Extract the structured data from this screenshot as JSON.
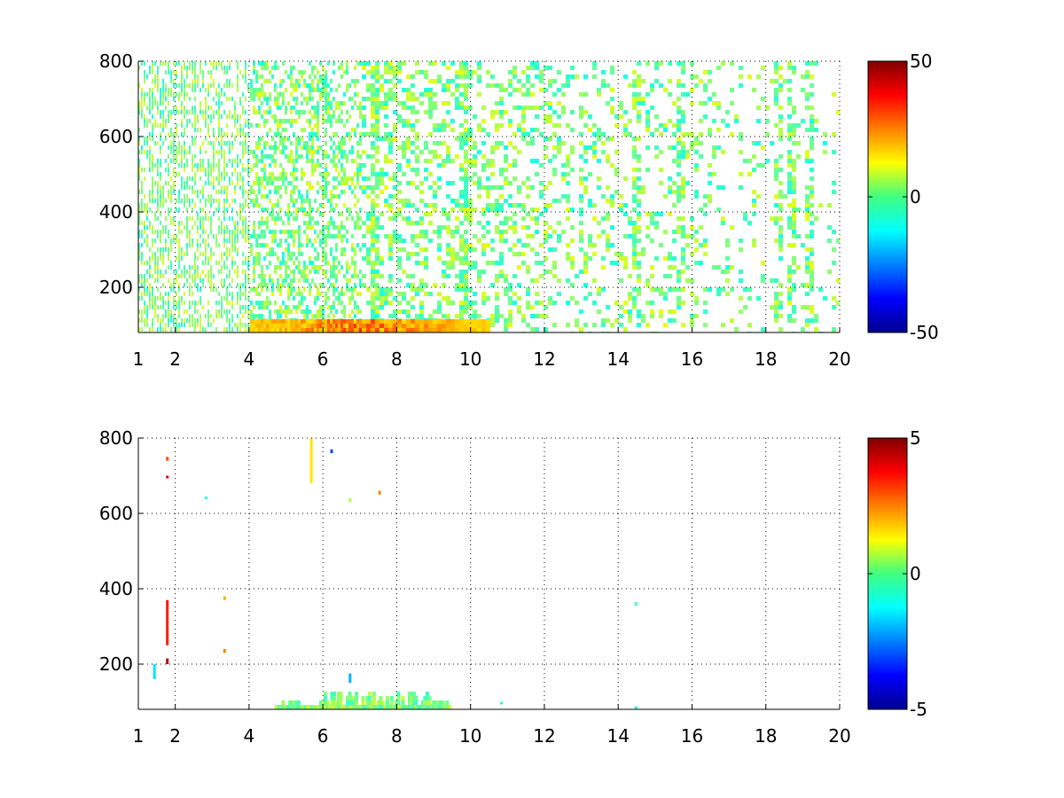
{
  "chart_data": [
    {
      "type": "heatmap",
      "title": "",
      "xlabel": "",
      "ylabel": "",
      "xlim": [
        1,
        20
      ],
      "ylim": [
        80,
        800
      ],
      "xticks": [
        1,
        2,
        4,
        6,
        8,
        10,
        12,
        14,
        16,
        18,
        20
      ],
      "xtick_labels": [
        "1",
        "2",
        "4",
        "6",
        "8",
        "10",
        "12",
        "14",
        "16",
        "18",
        "20"
      ],
      "yticks": [
        200,
        400,
        600,
        800
      ],
      "ytick_labels": [
        "200",
        "400",
        "600",
        "800"
      ],
      "grid": true,
      "grid_style": "dotted",
      "colormap": "jet",
      "clim": [
        -50,
        50
      ],
      "colorbar_ticks": [
        -50,
        0,
        50
      ],
      "colorbar_labels": [
        "-50",
        "0",
        "50"
      ],
      "empty_color": "#ffffff",
      "description": "dense scattered cells; most values near 0 (cyan/green/yellow); strong positive values (orange/red) along the bottom rows for x 4-10; density decreases with x; distinct bands near x = 7.5, 10, 14.4, 15.7, 18-19"
    },
    {
      "type": "heatmap",
      "title": "",
      "xlabel": "",
      "ylabel": "",
      "xlim": [
        1,
        20
      ],
      "ylim": [
        80,
        800
      ],
      "xticks": [
        1,
        2,
        4,
        6,
        8,
        10,
        12,
        14,
        16,
        18,
        20
      ],
      "xtick_labels": [
        "1",
        "2",
        "4",
        "6",
        "8",
        "10",
        "12",
        "14",
        "16",
        "18",
        "20"
      ],
      "yticks": [
        200,
        400,
        600,
        800
      ],
      "ytick_labels": [
        "200",
        "400",
        "600",
        "800"
      ],
      "grid": true,
      "grid_style": "dotted",
      "colormap": "jet",
      "clim": [
        -5,
        5
      ],
      "colorbar_ticks": [
        -5,
        0,
        5
      ],
      "colorbar_labels": [
        "-5",
        "0",
        "5"
      ],
      "empty_color": "#ffffff",
      "description": "very sparse; a band of near-zero values along the bottom rows for x 4.7-9.4; isolated cells near x = 1.4-1.8, 5.6-6.2, 6.7, 7.5, 10.8, 14.4"
    }
  ]
}
